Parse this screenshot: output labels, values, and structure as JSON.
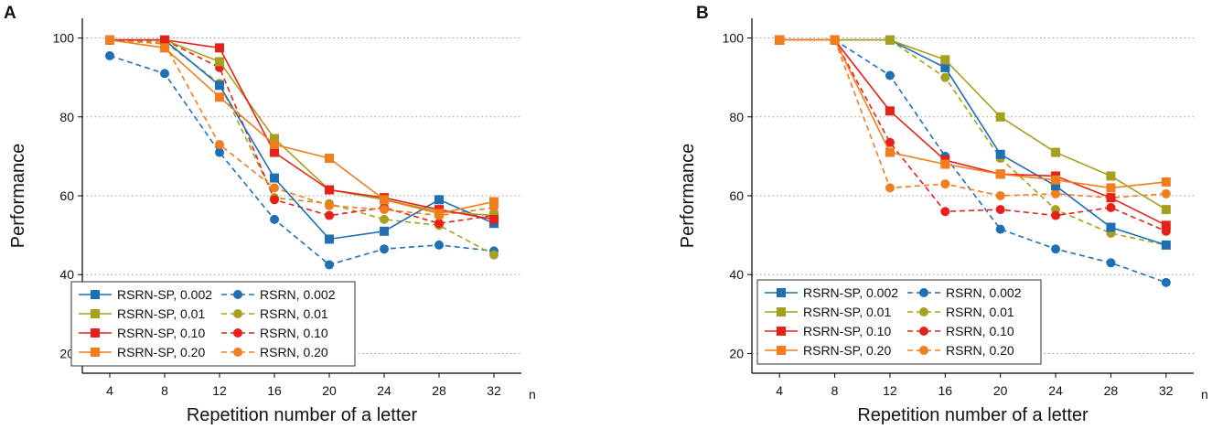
{
  "chart_data": [
    {
      "type": "line",
      "panel_label": "A",
      "xlabel": "Repetition number of a letter",
      "xlabel_suffix": "n",
      "ylabel": "Performance",
      "x": [
        4,
        8,
        12,
        16,
        20,
        24,
        28,
        32
      ],
      "xlim": [
        2,
        34
      ],
      "ylim": [
        15,
        105
      ],
      "yticks": [
        20,
        40,
        60,
        80,
        100
      ],
      "grid": "horizontal dotted",
      "legend_position": "bottom-left",
      "series": [
        {
          "name": "RSRN-SP, 0.002",
          "color": "#1f6fb4",
          "style": "solid",
          "marker": "square",
          "values": [
            99.5,
            99.5,
            88,
            64.5,
            49,
            51,
            59,
            53
          ]
        },
        {
          "name": "RSRN-SP, 0.01",
          "color": "#a6a01e",
          "style": "solid",
          "marker": "square",
          "values": [
            99.5,
            99.5,
            94,
            74.5,
            61.5,
            59,
            56,
            55
          ]
        },
        {
          "name": "RSRN-SP, 0.10",
          "color": "#e8201a",
          "style": "solid",
          "marker": "square",
          "values": [
            99.5,
            99.5,
            97.5,
            71,
            61.5,
            59.5,
            56.5,
            54
          ]
        },
        {
          "name": "RSRN-SP, 0.20",
          "color": "#f27d1c",
          "style": "solid",
          "marker": "square",
          "values": [
            99.5,
            97.5,
            85,
            73,
            69.5,
            59,
            55.5,
            58.5
          ]
        },
        {
          "name": "RSRN, 0.002",
          "color": "#1f6fb4",
          "style": "dashed",
          "marker": "circle",
          "values": [
            95.5,
            91,
            71,
            54,
            42.5,
            46.5,
            47.5,
            46
          ]
        },
        {
          "name": "RSRN, 0.01",
          "color": "#a6a01e",
          "style": "dashed",
          "marker": "circle",
          "values": [
            99.5,
            99,
            88.5,
            59.5,
            58,
            54,
            52.5,
            45
          ]
        },
        {
          "name": "RSRN, 0.10",
          "color": "#e8201a",
          "style": "dashed",
          "marker": "circle",
          "values": [
            99.5,
            99.5,
            92.5,
            59,
            55,
            57,
            53,
            55
          ]
        },
        {
          "name": "RSRN, 0.20",
          "color": "#f27d1c",
          "style": "dashed",
          "marker": "circle",
          "values": [
            99.5,
            98.5,
            73,
            62,
            57.5,
            56.5,
            55,
            57
          ]
        }
      ]
    },
    {
      "type": "line",
      "panel_label": "B",
      "xlabel": "Repetition number of a letter",
      "xlabel_suffix": "n",
      "ylabel": "Performance",
      "x": [
        4,
        8,
        12,
        16,
        20,
        24,
        28,
        32
      ],
      "xlim": [
        2,
        34
      ],
      "ylim": [
        15,
        105
      ],
      "yticks": [
        20,
        40,
        60,
        80,
        100
      ],
      "grid": "horizontal dotted",
      "legend_position": "bottom-left",
      "series": [
        {
          "name": "RSRN-SP, 0.002",
          "color": "#1f6fb4",
          "style": "solid",
          "marker": "square",
          "values": [
            99.5,
            99.5,
            99.5,
            92.5,
            70.5,
            62.5,
            52,
            47.5
          ]
        },
        {
          "name": "RSRN-SP, 0.01",
          "color": "#a6a01e",
          "style": "solid",
          "marker": "square",
          "values": [
            99.5,
            99.5,
            99.5,
            94.5,
            80,
            71,
            65,
            56.5
          ]
        },
        {
          "name": "RSRN-SP, 0.10",
          "color": "#e8201a",
          "style": "solid",
          "marker": "square",
          "values": [
            99.5,
            99.5,
            81.5,
            69,
            65.5,
            65,
            59.5,
            52.5
          ]
        },
        {
          "name": "RSRN-SP, 0.20",
          "color": "#f27d1c",
          "style": "solid",
          "marker": "square",
          "values": [
            99.5,
            99.5,
            71,
            68,
            65.5,
            64,
            62,
            63.5
          ]
        },
        {
          "name": "RSRN, 0.002",
          "color": "#1f6fb4",
          "style": "dashed",
          "marker": "circle",
          "values": [
            99.5,
            99.5,
            90.5,
            70,
            51.5,
            46.5,
            43,
            38
          ]
        },
        {
          "name": "RSRN, 0.01",
          "color": "#a6a01e",
          "style": "dashed",
          "marker": "circle",
          "values": [
            99.5,
            99.5,
            99.5,
            90,
            69.5,
            56.5,
            50.5,
            47.5
          ]
        },
        {
          "name": "RSRN, 0.10",
          "color": "#e8201a",
          "style": "dashed",
          "marker": "circle",
          "values": [
            99.5,
            99.5,
            73.5,
            56,
            56.5,
            55,
            57,
            51
          ]
        },
        {
          "name": "RSRN, 0.20",
          "color": "#f27d1c",
          "style": "dashed",
          "marker": "circle",
          "values": [
            99.5,
            99.5,
            62,
            63,
            60,
            60.5,
            59.5,
            60.5
          ]
        }
      ]
    }
  ]
}
